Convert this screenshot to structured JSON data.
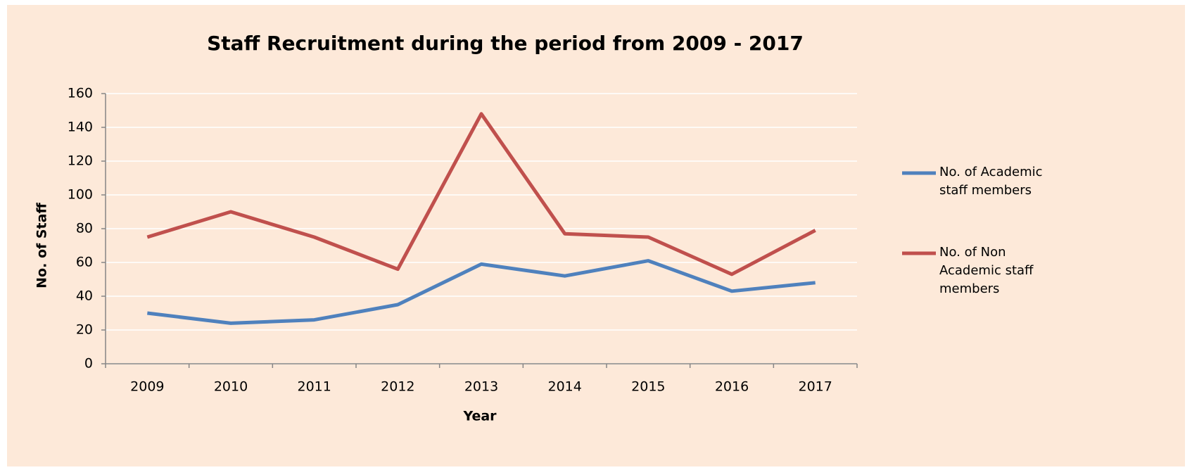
{
  "chart_data": {
    "type": "line",
    "title": "Staff Recruitment during the period from 2009 - 2017",
    "x_label": "Year",
    "y_label": "No. of Staff",
    "categories": [
      "2009",
      "2010",
      "2011",
      "2012",
      "2013",
      "2014",
      "2015",
      "2016",
      "2017"
    ],
    "series": [
      {
        "name": "No. of Academic staff members",
        "color": "#4f81bd",
        "values": [
          30,
          24,
          26,
          35,
          59,
          52,
          61,
          43,
          48
        ]
      },
      {
        "name": "No. of Non Academic staff members",
        "color": "#c0504d",
        "values": [
          75,
          90,
          75,
          56,
          148,
          77,
          75,
          53,
          79
        ]
      }
    ],
    "ylim": [
      0,
      160
    ],
    "yticks": [
      0,
      20,
      40,
      60,
      80,
      100,
      120,
      140,
      160
    ],
    "grid": true,
    "legend": "right"
  }
}
